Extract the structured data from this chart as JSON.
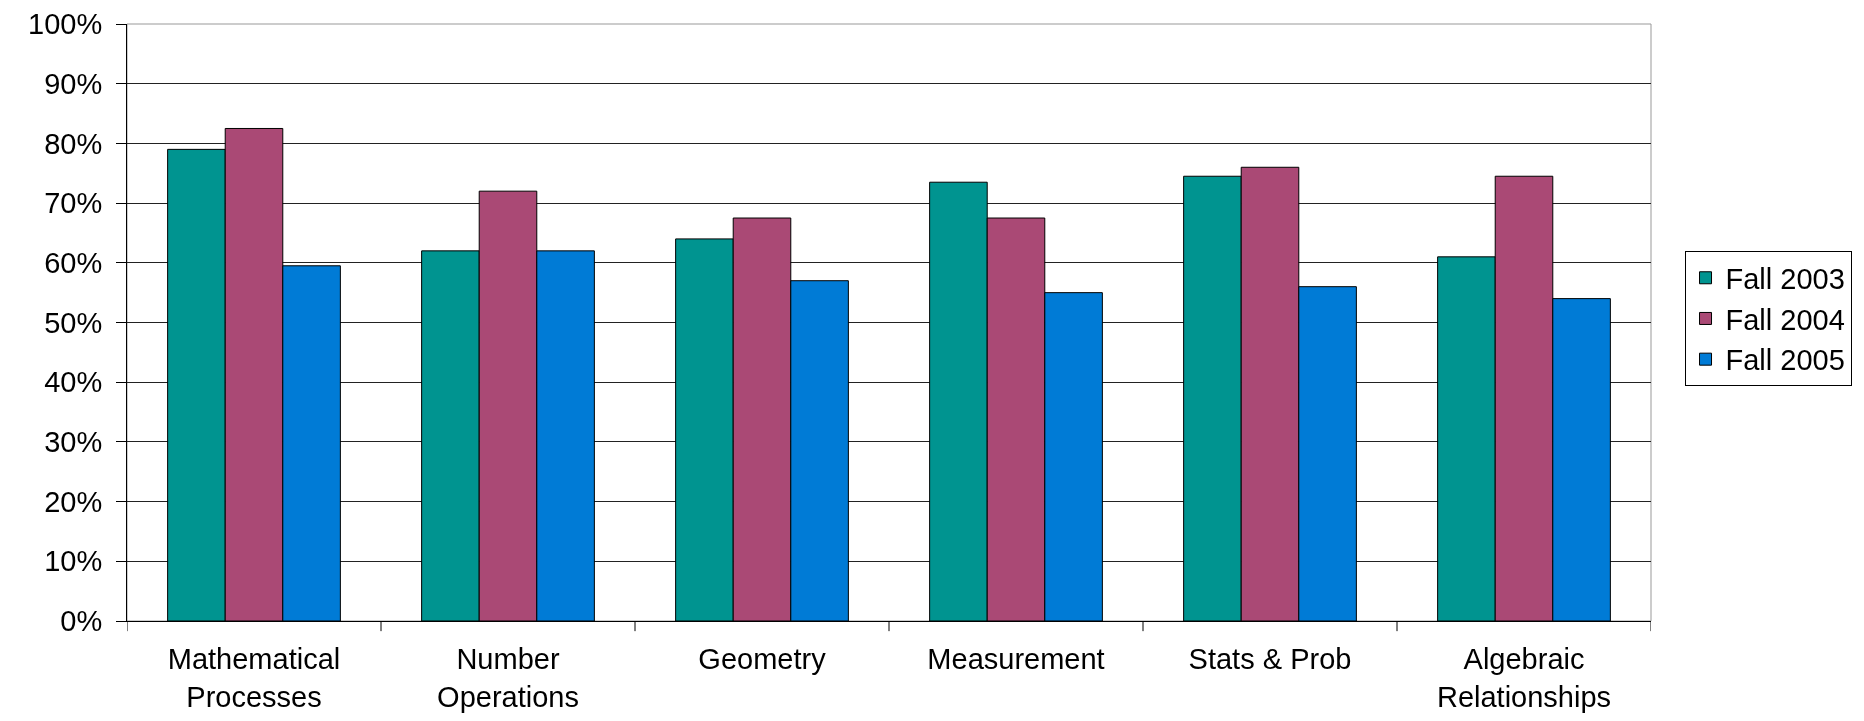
{
  "chart_data": {
    "type": "bar",
    "categories": [
      "Mathematical Processes",
      "Number Operations",
      "Geometry",
      "Measurement",
      "Stats & Prob",
      "Algebraic Relationships"
    ],
    "series": [
      {
        "name": "Fall 2003",
        "color": "#009490",
        "values": [
          79,
          62,
          64,
          73.5,
          74.5,
          61
        ]
      },
      {
        "name": "Fall 2004",
        "color": "#aa4975",
        "values": [
          82.5,
          72,
          67.5,
          67.5,
          76,
          74.5
        ]
      },
      {
        "name": "Fall 2005",
        "color": "#007bd6",
        "values": [
          59.5,
          62,
          57,
          55,
          56,
          54
        ]
      }
    ],
    "ylim": [
      0,
      100
    ],
    "yticks": [
      {
        "value": 0,
        "label": "0%"
      },
      {
        "value": 10,
        "label": "10%"
      },
      {
        "value": 20,
        "label": "20%"
      },
      {
        "value": 30,
        "label": "30%"
      },
      {
        "value": 40,
        "label": "40%"
      },
      {
        "value": 50,
        "label": "50%"
      },
      {
        "value": 60,
        "label": "60%"
      },
      {
        "value": 70,
        "label": "70%"
      },
      {
        "value": 80,
        "label": "80%"
      },
      {
        "value": 90,
        "label": "90%"
      },
      {
        "value": 100,
        "label": "100%"
      }
    ],
    "grid": "y",
    "legend": "right"
  }
}
